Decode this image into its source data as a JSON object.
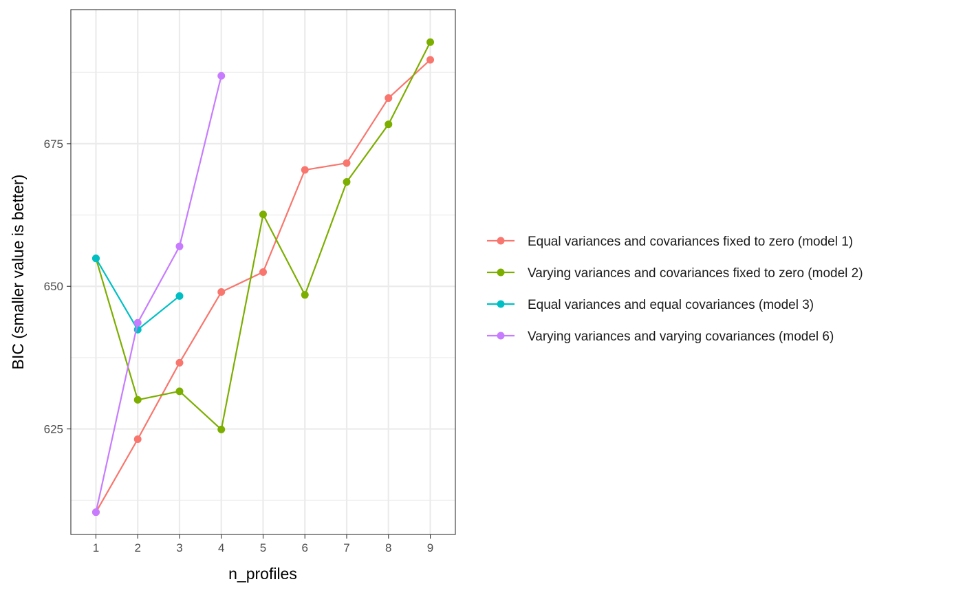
{
  "chart_data": {
    "type": "line",
    "title": "",
    "xlabel": "n_profiles",
    "ylabel": "BIC (smaller value is better)",
    "x": [
      1,
      2,
      3,
      4,
      5,
      6,
      7,
      8,
      9
    ],
    "x_ticks": [
      "1",
      "2",
      "3",
      "4",
      "5",
      "6",
      "7",
      "8",
      "9"
    ],
    "xlim": [
      0.4,
      9.6
    ],
    "ylim": [
      606.5,
      698.5
    ],
    "y_ticks": [
      625,
      650,
      675
    ],
    "y_tick_labels": [
      "625",
      "650",
      "675"
    ],
    "grid": true,
    "legend_position": "right",
    "series": [
      {
        "name": "Equal variances and covariances fixed to zero (model 1)",
        "color": "#F8766D",
        "x": [
          1,
          2,
          3,
          4,
          5,
          6,
          7,
          8,
          9
        ],
        "values": [
          610.4,
          623.2,
          636.6,
          649.0,
          652.5,
          670.4,
          671.6,
          683.0,
          689.7
        ]
      },
      {
        "name": "Varying variances and covariances fixed to zero (model 2)",
        "color": "#7CAE00",
        "x": [
          1,
          2,
          3,
          4,
          5,
          6,
          7,
          8,
          9
        ],
        "values": [
          654.9,
          630.1,
          631.6,
          624.9,
          662.6,
          648.5,
          668.3,
          678.4,
          692.8
        ]
      },
      {
        "name": "Equal variances and equal covariances (model 3)",
        "color": "#00BFC4",
        "x": [
          1,
          2,
          3
        ],
        "values": [
          654.9,
          642.4,
          648.3
        ]
      },
      {
        "name": "Varying variances and varying covariances (model 6)",
        "color": "#C77CFF",
        "x": [
          1,
          2,
          3,
          4
        ],
        "values": [
          610.4,
          643.6,
          657.0,
          686.9
        ]
      }
    ]
  }
}
